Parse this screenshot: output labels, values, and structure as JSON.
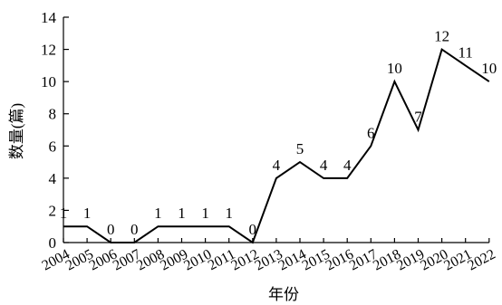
{
  "chart_data": {
    "type": "line",
    "title": "",
    "xlabel": "年份",
    "ylabel": "数量(篇)",
    "ylim": [
      0,
      14
    ],
    "yticks": [
      0,
      2,
      4,
      6,
      8,
      10,
      12,
      14
    ],
    "categories": [
      "2004",
      "2005",
      "2006",
      "2007",
      "2008",
      "2009",
      "2010",
      "2011",
      "2012",
      "2013",
      "2014",
      "2015",
      "2016",
      "2017",
      "2018",
      "2019",
      "2020",
      "2021",
      "2022"
    ],
    "series": [
      {
        "values": [
          1,
          1,
          0,
          0,
          1,
          1,
          1,
          1,
          0,
          4,
          5,
          4,
          4,
          6,
          10,
          7,
          12,
          11,
          10
        ],
        "color": "#000000"
      }
    ],
    "grid": false,
    "legend": "none"
  }
}
